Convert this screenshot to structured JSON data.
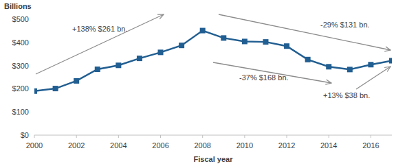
{
  "chart_data": {
    "type": "line",
    "x_label": "Fiscal year",
    "y_label": "Billions",
    "x": [
      2000,
      2001,
      2002,
      2003,
      2004,
      2005,
      2006,
      2007,
      2008,
      2009,
      2010,
      2011,
      2012,
      2013,
      2014,
      2015,
      2016,
      2017
    ],
    "values": [
      190,
      201,
      234,
      284,
      301,
      331,
      357,
      387,
      451,
      419,
      404,
      402,
      384,
      326,
      295,
      283,
      304,
      321
    ],
    "color": "#215e91",
    "marker": "square",
    "xlim": [
      2000,
      2017
    ],
    "xticks": [
      2000,
      2002,
      2004,
      2006,
      2008,
      2010,
      2012,
      2014,
      2016
    ],
    "ylim": [
      0,
      500
    ],
    "yticks": [
      {
        "value": 0,
        "label": "$0"
      },
      {
        "value": 100,
        "label": "$100"
      },
      {
        "value": 200,
        "label": "$200"
      },
      {
        "value": 300,
        "label": "$300"
      },
      {
        "value": 400,
        "label": "$400"
      },
      {
        "value": 500,
        "label": "$500"
      }
    ],
    "grid": false,
    "annotations": [
      "+138% $261 bn.",
      "-29% $131 bn.",
      "-37% $168 bn.",
      "+13% $38 bn."
    ]
  }
}
